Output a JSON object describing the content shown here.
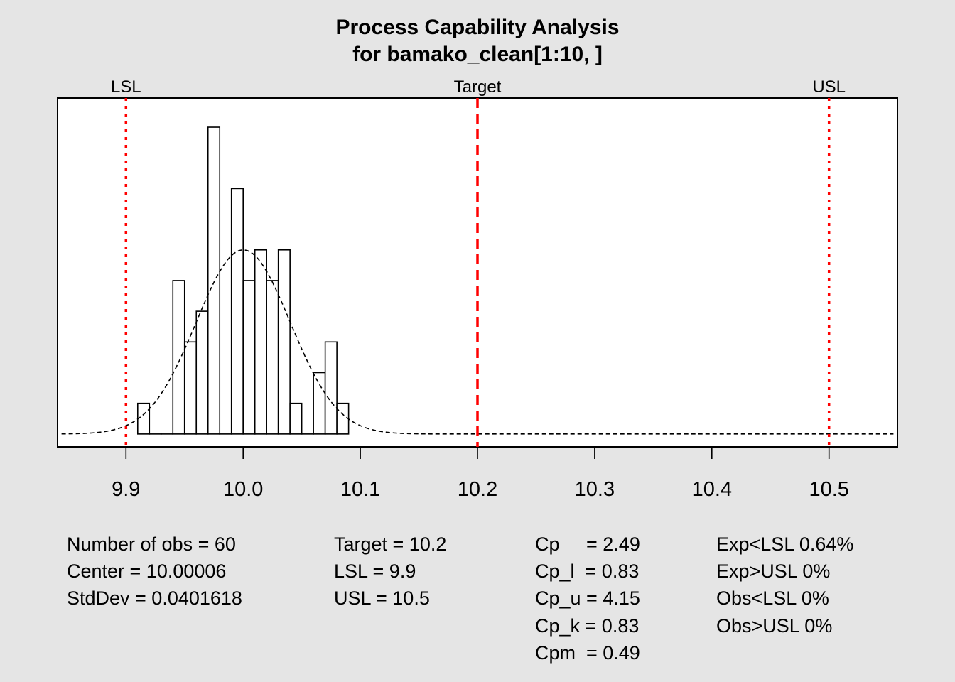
{
  "title": {
    "line1": "Process Capability Analysis",
    "line2": "for bamako_clean[1:10, ]"
  },
  "chart_data": {
    "type": "bar",
    "subtype": "histogram-with-normal-density",
    "xlim": [
      9.8416,
      10.5584
    ],
    "ylim": [
      -0.42,
      10.95
    ],
    "x_ticks": [
      9.9,
      10.0,
      10.1,
      10.2,
      10.3,
      10.4,
      10.5
    ],
    "x_tick_labels": [
      "9.9",
      "10.0",
      "10.1",
      "10.2",
      "10.3",
      "10.4",
      "10.5"
    ],
    "bin_width": 0.01,
    "bins": [
      {
        "start": 9.91,
        "end": 9.92,
        "count": 1
      },
      {
        "start": 9.92,
        "end": 9.93,
        "count": 0
      },
      {
        "start": 9.93,
        "end": 9.94,
        "count": 0
      },
      {
        "start": 9.94,
        "end": 9.95,
        "count": 5
      },
      {
        "start": 9.95,
        "end": 9.96,
        "count": 3
      },
      {
        "start": 9.96,
        "end": 9.97,
        "count": 4
      },
      {
        "start": 9.97,
        "end": 9.98,
        "count": 10
      },
      {
        "start": 9.98,
        "end": 9.99,
        "count": 0
      },
      {
        "start": 9.99,
        "end": 10.0,
        "count": 8
      },
      {
        "start": 10.0,
        "end": 10.01,
        "count": 5
      },
      {
        "start": 10.01,
        "end": 10.02,
        "count": 6
      },
      {
        "start": 10.02,
        "end": 10.03,
        "count": 5
      },
      {
        "start": 10.03,
        "end": 10.04,
        "count": 6
      },
      {
        "start": 10.04,
        "end": 10.05,
        "count": 1
      },
      {
        "start": 10.05,
        "end": 10.06,
        "count": 0
      },
      {
        "start": 10.06,
        "end": 10.07,
        "count": 2
      },
      {
        "start": 10.07,
        "end": 10.08,
        "count": 3
      },
      {
        "start": 10.08,
        "end": 10.09,
        "count": 1
      }
    ],
    "normal_curve": {
      "mean": 10.00006,
      "sd": 0.0401618,
      "peak": 6.0,
      "x_range": [
        9.845,
        10.555
      ]
    },
    "spec_lines": [
      {
        "label": "LSL",
        "value": 9.9,
        "style": "dotted"
      },
      {
        "label": "Target",
        "value": 10.2,
        "style": "dashed"
      },
      {
        "label": "USL",
        "value": 10.5,
        "style": "dotted"
      }
    ],
    "colors": {
      "spec_line": "#ff0000",
      "bar_fill": "#ffffff",
      "bar_stroke": "#000000",
      "background": "#e5e5e5",
      "plot_bg": "#ffffff"
    }
  },
  "stats": {
    "col1": [
      "Number of obs = 60",
      "Center = 10.00006",
      "StdDev = 0.0401618"
    ],
    "col2": [
      "Target = 10.2",
      "LSL = 9.9",
      "USL = 10.5"
    ],
    "col3": [
      "Cp     = 2.49",
      "Cp_l  = 0.83",
      "Cp_u = 4.15",
      "Cp_k = 0.83",
      "Cpm  = 0.49"
    ],
    "col4": [
      "Exp<LSL 0.64%",
      "Exp>USL 0%",
      "Obs<LSL 0%",
      "Obs>USL 0%"
    ]
  }
}
